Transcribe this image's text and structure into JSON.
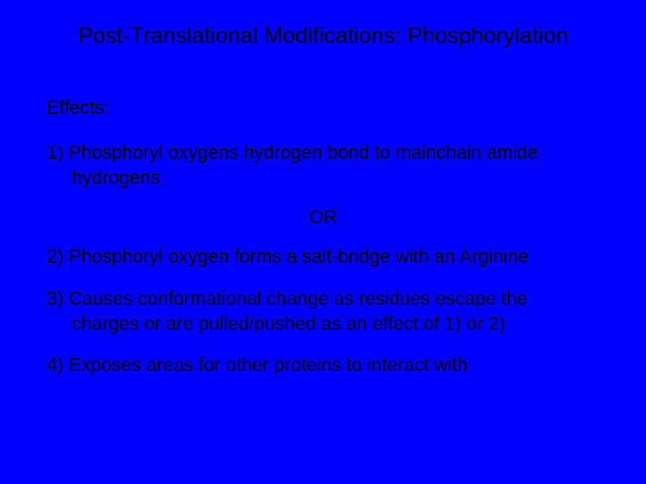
{
  "slide": {
    "background_color": "#0000ff",
    "text_color": "#000000",
    "font_family": "Arial",
    "title": "Post-Translational Modifications:  Phosphorylation",
    "title_fontsize": 25,
    "effects_label": "Effects:",
    "body_fontsize": 21,
    "item1_line1": "1) Phosphoryl oxygens hydrogen bond to mainchain amide",
    "item1_line2": "hydrogens",
    "or_text": "OR",
    "item2": "2) Phosphoryl oxygen forms a salt-bridge with an Arginine",
    "item3_line1": "3) Causes conformational change as residues escape the",
    "item3_line2": "charges or are pulled/pushed as an effect of 1) or 2)",
    "item4": "4) Exposes areas for other proteins to interact with"
  }
}
